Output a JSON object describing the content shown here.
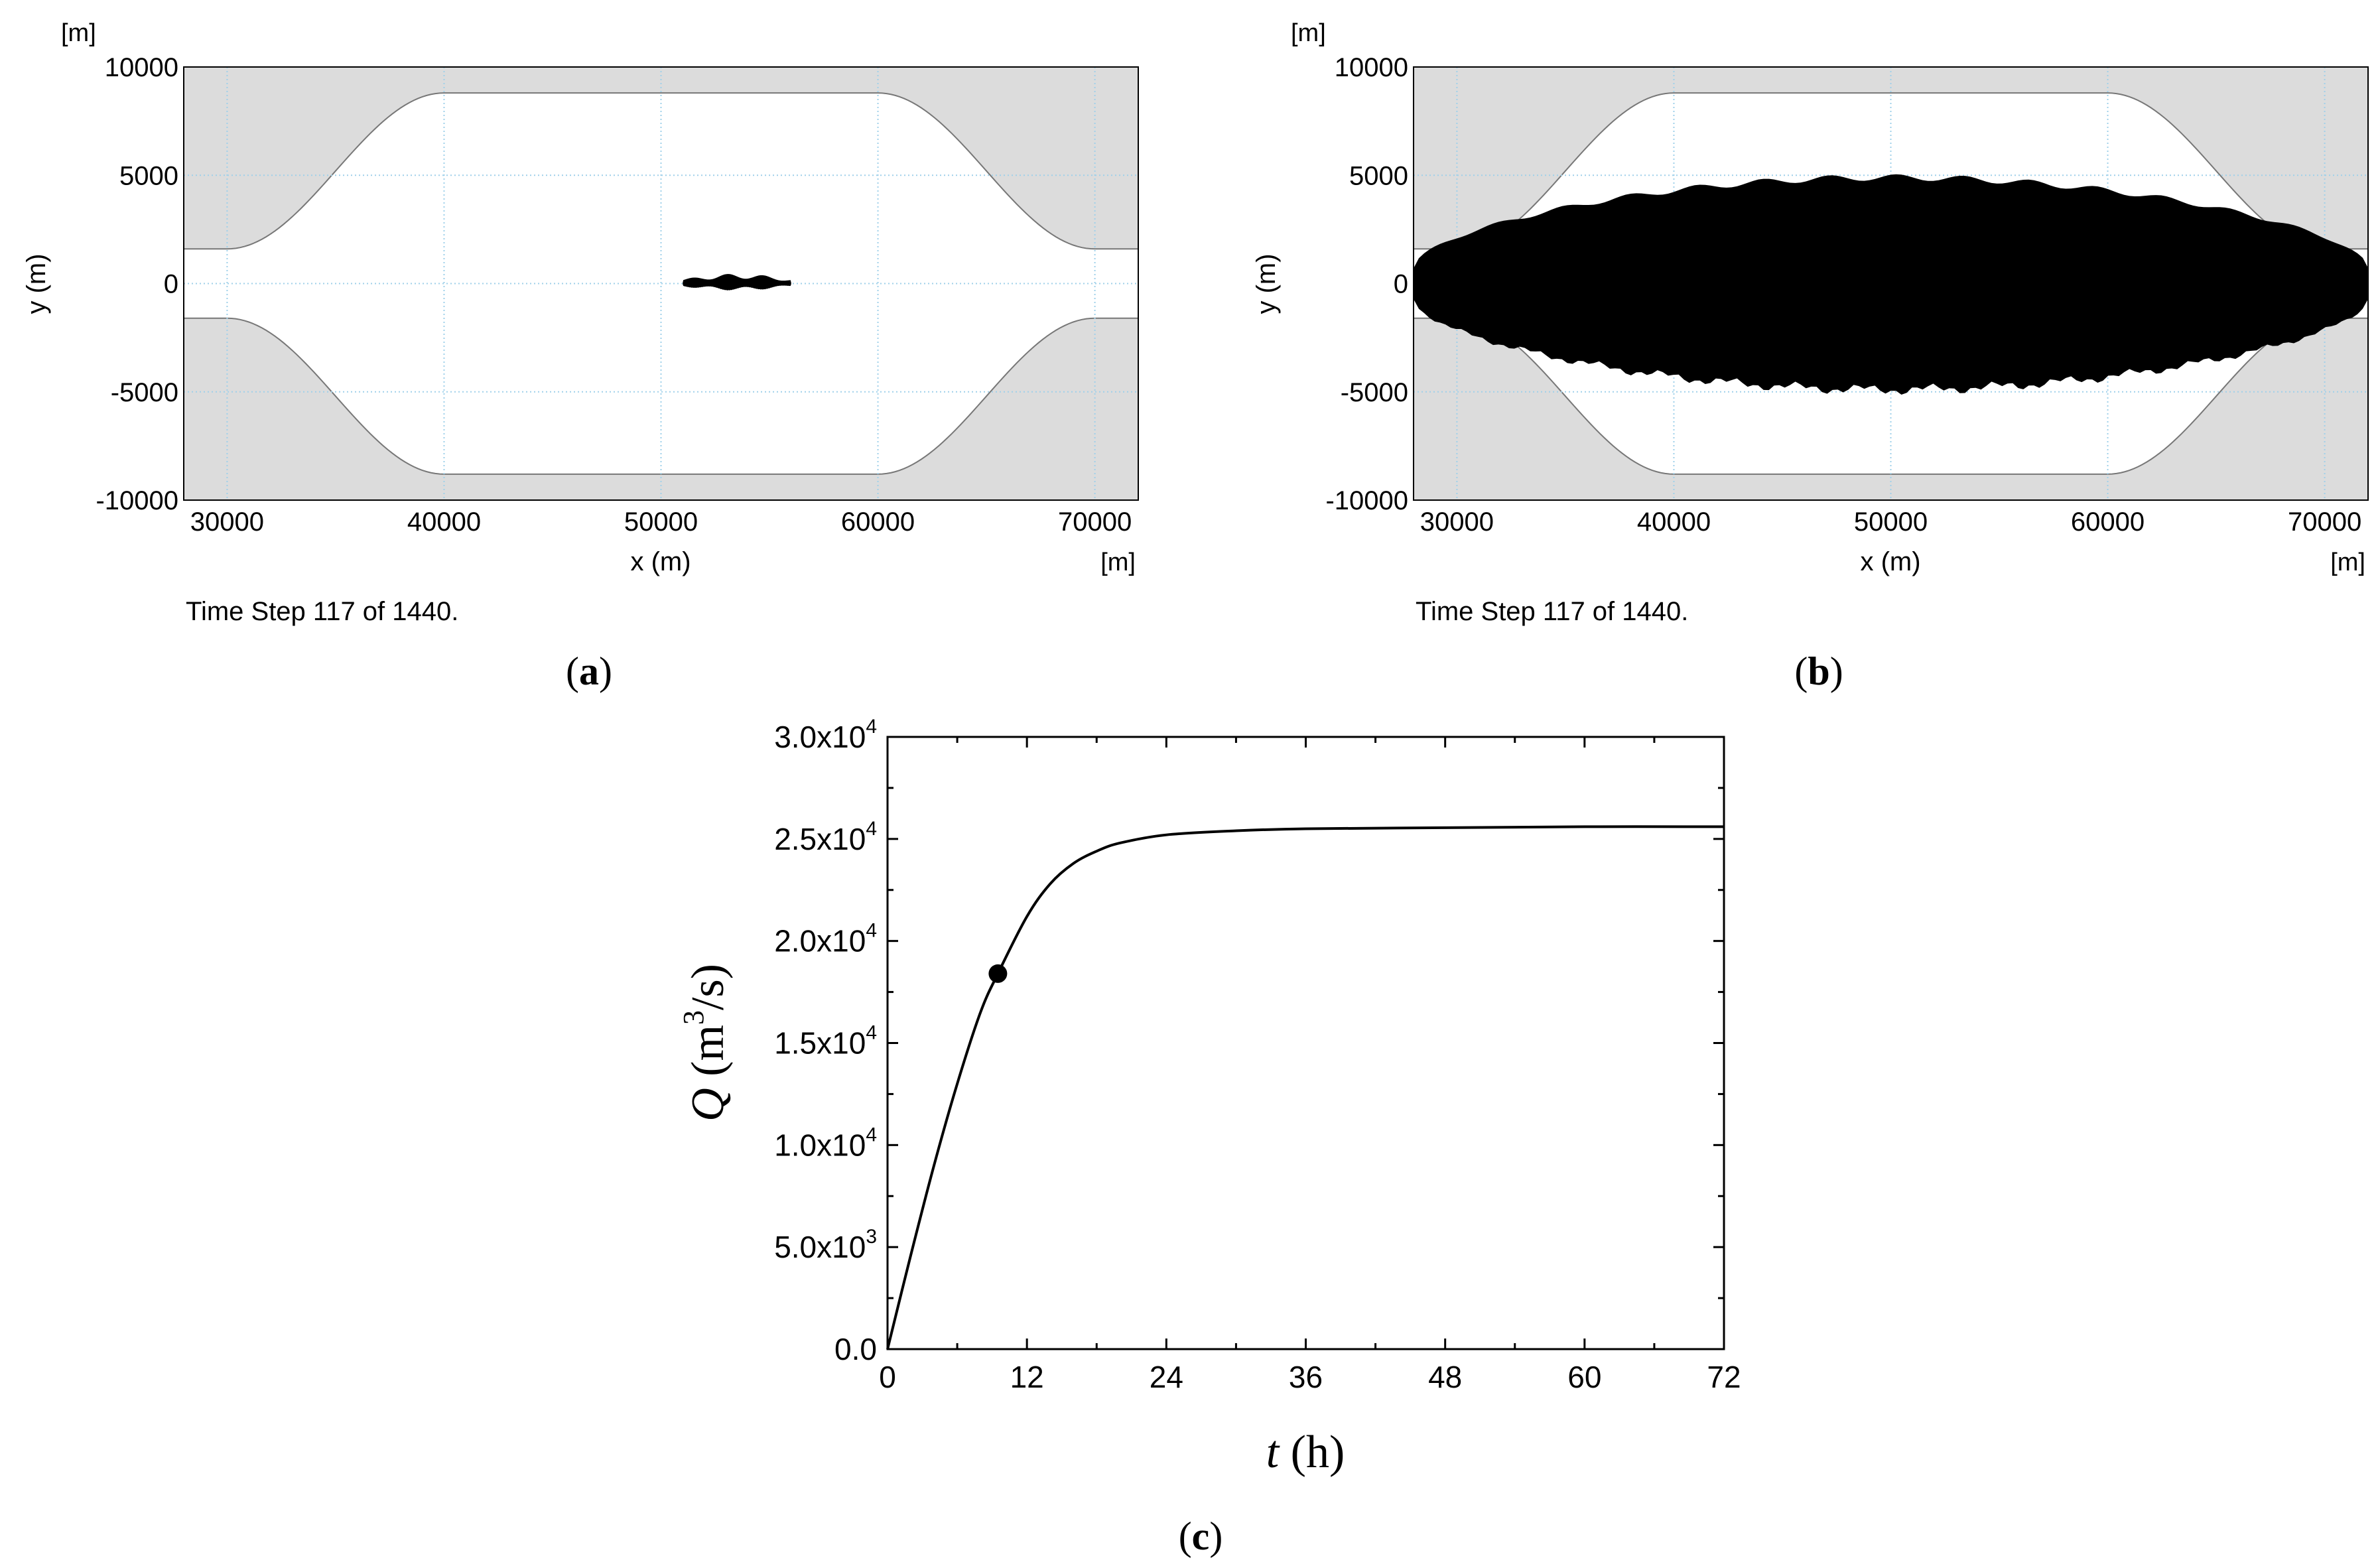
{
  "panels": {
    "a": {
      "letter": "a",
      "unit_top": "[m]",
      "unit_right": "[m]",
      "xlabel": "x (m)",
      "ylabel": "y (m)",
      "x_ticks": [
        "30000",
        "40000",
        "50000",
        "60000",
        "70000"
      ],
      "y_ticks": [
        "10000",
        "5000",
        "0",
        "-5000",
        "-10000"
      ],
      "caption": "Time Step 117 of 1440."
    },
    "b": {
      "letter": "b",
      "unit_top": "[m]",
      "unit_right": "[m]",
      "xlabel": "x (m)",
      "ylabel": "y (m)",
      "x_ticks": [
        "30000",
        "40000",
        "50000",
        "60000",
        "70000"
      ],
      "y_ticks": [
        "10000",
        "5000",
        "0",
        "-5000",
        "-10000"
      ],
      "caption": "Time Step 117 of 1440."
    },
    "c": {
      "letter": "c",
      "xlabel_var": "t",
      "xlabel_unit": "(h)",
      "ylabel_var": "Q",
      "ylabel_unit_pre": "(m",
      "ylabel_unit_sup": "3",
      "ylabel_unit_post": "/s)",
      "x_ticks": [
        "0",
        "12",
        "24",
        "36",
        "48",
        "60",
        "72"
      ],
      "y_ticks": [
        {
          "mant": "0.0",
          "exp": ""
        },
        {
          "mant": "5.0x10",
          "exp": "3"
        },
        {
          "mant": "1.0x10",
          "exp": "4"
        },
        {
          "mant": "1.5x10",
          "exp": "4"
        },
        {
          "mant": "2.0x10",
          "exp": "4"
        },
        {
          "mant": "2.5x10",
          "exp": "4"
        },
        {
          "mant": "3.0x10",
          "exp": "4"
        }
      ]
    }
  },
  "colors": {
    "land": "#dcdcdc",
    "grid": "#9fd0ea",
    "plume": "#000000",
    "axis": "#000000"
  },
  "chart_data": [
    {
      "type": "area",
      "panel": "a",
      "xlim": [
        28000,
        72000
      ],
      "ylim": [
        -10000,
        10000
      ],
      "grid": true,
      "channel_halfwidth": 8800,
      "channel_halfwidth_ends": 1600,
      "plume": {
        "x_start": 51000,
        "x_end": 56000,
        "half_width_max": 450
      }
    },
    {
      "type": "area",
      "panel": "b",
      "xlim": [
        28000,
        72000
      ],
      "ylim": [
        -10000,
        10000
      ],
      "grid": true,
      "channel_halfwidth": 8800,
      "channel_halfwidth_ends": 1600,
      "plume": {
        "x_start": 28000,
        "x_end": 72000,
        "half_width_max": 4900,
        "half_width_ends": 700
      }
    },
    {
      "type": "line",
      "panel": "c",
      "xlim": [
        0,
        72
      ],
      "ylim": [
        0,
        30000
      ],
      "x": [
        0,
        2,
        4,
        6,
        8,
        9.5,
        12,
        14,
        16,
        18,
        20,
        24,
        30,
        36,
        48,
        60,
        72
      ],
      "y": [
        0,
        4600,
        9000,
        13000,
        16500,
        18400,
        21200,
        22800,
        23800,
        24400,
        24800,
        25200,
        25400,
        25500,
        25550,
        25600,
        25600
      ],
      "marker": {
        "x": 9.5,
        "y": 18400
      }
    }
  ]
}
